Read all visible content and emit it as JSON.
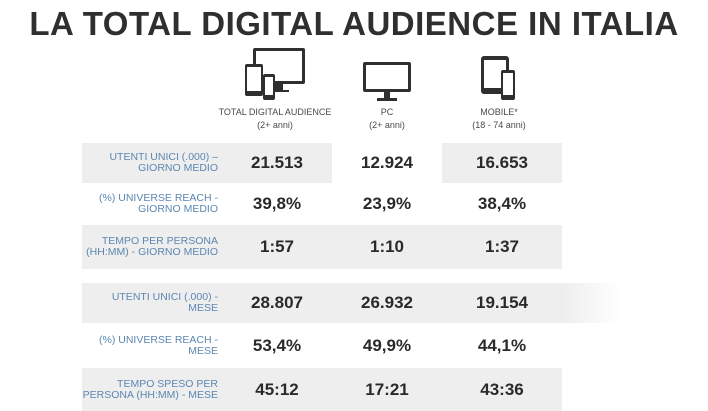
{
  "title": "LA TOTAL DIGITAL AUDIENCE IN ITALIA",
  "chart_data": {
    "type": "table",
    "columns": [
      {
        "name": "TOTAL DIGITAL AUDIENCE",
        "sub": "(2+ anni)",
        "icon": "multi-device-icon"
      },
      {
        "name": "PC",
        "sub": "(2+ anni)",
        "icon": "monitor-icon"
      },
      {
        "name": "MOBILE*",
        "sub": "(18 - 74 anni)",
        "icon": "mobile-devices-icon"
      }
    ],
    "rows": [
      {
        "label": "UTENTI UNICI  (.000) – GIORNO MEDIO",
        "values": [
          "21.513",
          "12.924",
          "16.653"
        ]
      },
      {
        "label": "(%) UNIVERSE REACH - GIORNO MEDIO",
        "values": [
          "39,8%",
          "23,9%",
          "38,4%"
        ]
      },
      {
        "label": "TEMPO PER PERSONA (HH:MM) - GIORNO MEDIO",
        "values": [
          "1:57",
          "1:10",
          "1:37"
        ]
      },
      {
        "label": "UTENTI UNICI (.000) - MESE",
        "values": [
          "28.807",
          "26.932",
          "19.154"
        ]
      },
      {
        "label": "(%) UNIVERSE REACH - MESE",
        "values": [
          "53,4%",
          "49,9%",
          "44,1%"
        ]
      },
      {
        "label": "TEMPO SPESO PER PERSONA (HH:MM) - MESE",
        "values": [
          "45:12",
          "17:21",
          "43:36"
        ]
      }
    ]
  },
  "colors": {
    "label_blue": "#5b87b2",
    "row_shade": "#eeeeee",
    "title": "#2f2f2f"
  }
}
